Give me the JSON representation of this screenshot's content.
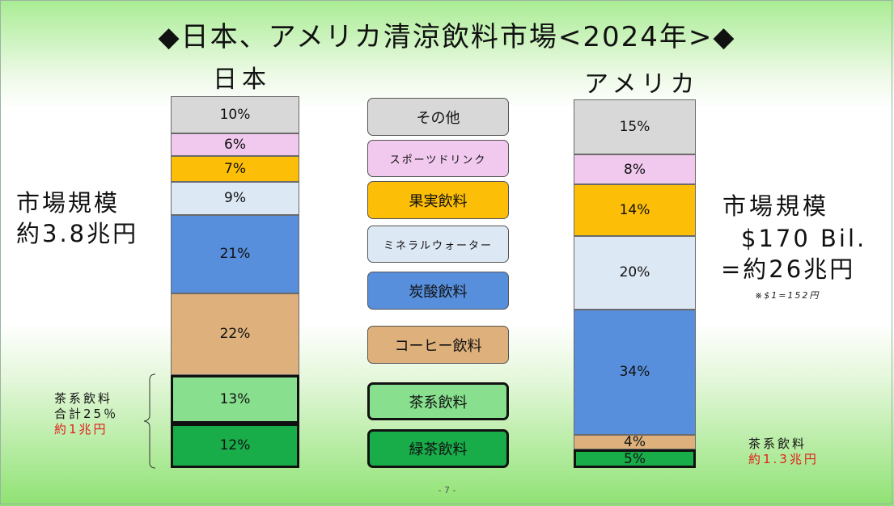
{
  "title": "◆日本、アメリカ清涼飲料市場<2024年>◆",
  "japan": {
    "label": "日本",
    "market_label": "市場規模",
    "market_value": "約3.8兆円",
    "tea_note": {
      "line1": "茶系飲料",
      "line2": "合計25％",
      "line3": "約1兆円"
    }
  },
  "usa": {
    "label": "アメリカ",
    "market_label": "市場規模",
    "market_value_usd": "$170 Bil.",
    "market_value_jpy": "=約26兆円",
    "exchange_note": "※$1=152円",
    "tea_note": {
      "line1": "茶系飲料",
      "line2": "約1.3兆円"
    }
  },
  "legend": [
    "その他",
    "スポーツドリンク",
    "果実飲料",
    "ミネラルウォーター",
    "炭酸飲料",
    "コーヒー飲料",
    "茶系飲料",
    "緑茶飲料"
  ],
  "page_number": "- 7 -",
  "chart_data": {
    "type": "bar",
    "stacked": true,
    "normalized_to": 100,
    "unit": "%",
    "categories": [
      "日本",
      "アメリカ"
    ],
    "series": [
      {
        "name": "緑茶飲料",
        "color": "#19ad4a",
        "values": [
          12,
          5
        ],
        "labels": [
          "12%",
          "5%"
        ]
      },
      {
        "name": "茶系飲料",
        "color": "#88e08e",
        "values": [
          13,
          null
        ],
        "labels": [
          "13%",
          ""
        ]
      },
      {
        "name": "コーヒー飲料",
        "color": "#ddb07c",
        "values": [
          22,
          4
        ],
        "labels": [
          "22%",
          "4%"
        ]
      },
      {
        "name": "炭酸飲料",
        "color": "#578fdc",
        "values": [
          21,
          34
        ],
        "labels": [
          "21%",
          "34%"
        ]
      },
      {
        "name": "ミネラルウォーター",
        "color": "#dde8f5",
        "values": [
          9,
          20
        ],
        "labels": [
          "9%",
          "20%"
        ]
      },
      {
        "name": "果実飲料",
        "color": "#fdbe07",
        "values": [
          7,
          14
        ],
        "labels": [
          "7%",
          "14%"
        ]
      },
      {
        "name": "スポーツドリンク",
        "color": "#f1c9ee",
        "values": [
          6,
          8
        ],
        "labels": [
          "6%",
          "8%"
        ]
      },
      {
        "name": "その他",
        "color": "#d8d8d8",
        "values": [
          10,
          15
        ],
        "labels": [
          "10%",
          "15%"
        ]
      }
    ]
  }
}
